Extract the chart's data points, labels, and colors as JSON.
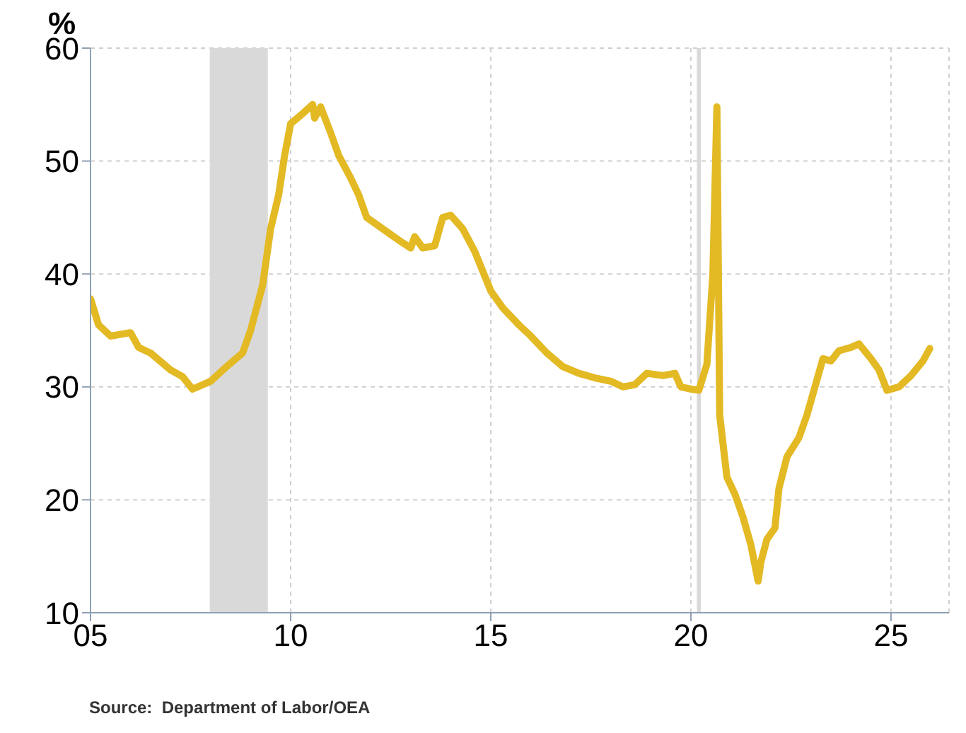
{
  "chart_data": {
    "type": "line",
    "ylabel": "%",
    "annotations": [
      "Source:  Department of Labor/OEA"
    ],
    "xlim": [
      2005,
      2026.45
    ],
    "xticks": [
      {
        "value": 2005,
        "label": "05"
      },
      {
        "value": 2010,
        "label": "10"
      },
      {
        "value": 2015,
        "label": "15"
      },
      {
        "value": 2020,
        "label": "20"
      },
      {
        "value": 2025,
        "label": "25"
      }
    ],
    "ylim": [
      10,
      60
    ],
    "yticks": [
      10,
      20,
      30,
      40,
      50,
      60
    ],
    "grid": true,
    "legend": false,
    "marker": "none",
    "line_style": "solid",
    "bands": [
      {
        "axis": "x",
        "from": 2007.98,
        "to": 2009.43,
        "color": "#d9d9d9"
      },
      {
        "axis": "x",
        "from": 2020.15,
        "to": 2020.25,
        "color": "#d9d9d9"
      }
    ],
    "series": [
      {
        "color": "#e3b924",
        "x": [
          2005,
          2005.2,
          2005.5,
          2006,
          2006.2,
          2006.5,
          2007,
          2007.3,
          2007.55,
          2008,
          2008.4,
          2008.8,
          2009,
          2009.3,
          2009.5,
          2009.7,
          2009.85,
          2010,
          2010.3,
          2010.55,
          2010.6,
          2010.75,
          2011,
          2011.2,
          2011.5,
          2011.7,
          2011.9,
          2012.3,
          2012.7,
          2013,
          2013.1,
          2013.3,
          2013.6,
          2013.8,
          2014,
          2014.3,
          2014.6,
          2015,
          2015.3,
          2015.7,
          2016,
          2016.4,
          2016.8,
          2017.2,
          2017.6,
          2018,
          2018.3,
          2018.6,
          2018.9,
          2019.3,
          2019.6,
          2019.75,
          2020,
          2020.2,
          2020.4,
          2020.55,
          2020.65,
          2020.72,
          2020.9,
          2021.1,
          2021.3,
          2021.5,
          2021.68,
          2021.75,
          2021.9,
          2022.1,
          2022.2,
          2022.4,
          2022.7,
          2022.9,
          2023.1,
          2023.3,
          2023.5,
          2023.7,
          2024,
          2024.2,
          2024.5,
          2024.7,
          2024.9,
          2025.2,
          2025.5,
          2025.8,
          2025.97
        ],
        "values": [
          37.8,
          35.5,
          34.5,
          34.8,
          33.5,
          33,
          31.5,
          30.9,
          29.8,
          30.5,
          31.8,
          33,
          35,
          39,
          44,
          47,
          50.5,
          53.3,
          54.2,
          55,
          53.8,
          54.8,
          52.5,
          50.5,
          48.5,
          47,
          45,
          44,
          43,
          42.3,
          43.3,
          42.3,
          42.5,
          45,
          45.2,
          44,
          42,
          38.5,
          37,
          35.5,
          34.5,
          33,
          31.8,
          31.2,
          30.8,
          30.5,
          30,
          30.2,
          31.2,
          31,
          31.2,
          30,
          29.8,
          29.7,
          32,
          40,
          54.8,
          27.5,
          22,
          20.5,
          18.5,
          16,
          12.8,
          14.5,
          16.5,
          17.5,
          21,
          23.8,
          25.5,
          27.5,
          30,
          32.5,
          32.3,
          33.2,
          33.5,
          33.8,
          32.5,
          31.5,
          29.7,
          30,
          31,
          32.3,
          33.4
        ]
      }
    ]
  }
}
